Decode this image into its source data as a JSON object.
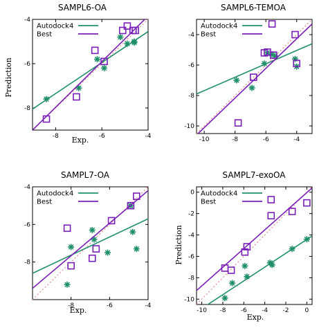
{
  "colors": {
    "autodock": "#1f8f6a",
    "best": "#7a1fb8",
    "diagonal": "#e88a8a",
    "axis": "#000000"
  },
  "chart_data": [
    {
      "type": "scatter",
      "title": "SAMPL6-OA",
      "xlabel": "Exp.",
      "ylabel": "Prediction",
      "xlim": [
        -9,
        -4
      ],
      "ylim": [
        -9,
        -4
      ],
      "xticks": [
        -8,
        -6,
        -4
      ],
      "yticks": [
        -8,
        -6,
        -4
      ],
      "legend": {
        "placement": "top-left",
        "entries": [
          "Autodock4",
          "Best"
        ]
      },
      "series": [
        {
          "name": "Autodock4",
          "marker": "asterisk",
          "points": [
            [
              -8.4,
              -7.6
            ],
            [
              -7.0,
              -7.1
            ],
            [
              -6.2,
              -5.8
            ],
            [
              -5.9,
              -6.2
            ],
            [
              -5.2,
              -4.8
            ],
            [
              -4.9,
              -5.1
            ],
            [
              -4.6,
              -5.05
            ],
            [
              -4.6,
              -5.0
            ]
          ],
          "fit": [
            [
              -9,
              -8.05
            ],
            [
              -4,
              -4.55
            ]
          ]
        },
        {
          "name": "Best",
          "marker": "square",
          "points": [
            [
              -8.4,
              -8.5
            ],
            [
              -7.1,
              -7.5
            ],
            [
              -6.3,
              -5.4
            ],
            [
              -5.9,
              -5.9
            ],
            [
              -5.1,
              -4.5
            ],
            [
              -4.9,
              -4.3
            ],
            [
              -4.65,
              -4.5
            ],
            [
              -4.55,
              -4.5
            ]
          ],
          "fit": [
            [
              -9,
              -9.0
            ],
            [
              -4,
              -3.85
            ]
          ]
        }
      ]
    },
    {
      "type": "scatter",
      "title": "SAMPL6-TEMOA",
      "xlabel": "",
      "ylabel": "",
      "xlim": [
        -10.5,
        -3
      ],
      "ylim": [
        -10.5,
        -3
      ],
      "xticks": [
        -10,
        -8,
        -6,
        -4
      ],
      "yticks": [
        -10,
        -8,
        -6,
        -4
      ],
      "legend": {
        "placement": "top-left",
        "entries": [
          "Autodock4",
          "Best"
        ]
      },
      "series": [
        {
          "name": "Autodock4",
          "marker": "asterisk",
          "points": [
            [
              -7.9,
              -7.0
            ],
            [
              -6.9,
              -7.5
            ],
            [
              -6.1,
              -5.9
            ],
            [
              -5.9,
              -5.2
            ],
            [
              -5.6,
              -5.3
            ],
            [
              -5.4,
              -5.4
            ],
            [
              -4.1,
              -5.6
            ],
            [
              -4.0,
              -6.1
            ]
          ],
          "fit": [
            [
              -10.5,
              -7.9
            ],
            [
              -3,
              -4.6
            ]
          ]
        },
        {
          "name": "Best",
          "marker": "square",
          "points": [
            [
              -7.8,
              -9.8
            ],
            [
              -6.8,
              -6.8
            ],
            [
              -6.1,
              -5.2
            ],
            [
              -5.9,
              -5.15
            ],
            [
              -5.5,
              -5.35
            ],
            [
              -5.6,
              -3.3
            ],
            [
              -4.1,
              -4.0
            ],
            [
              -4.0,
              -5.9
            ]
          ],
          "fit": [
            [
              -10.5,
              -10.6
            ],
            [
              -3,
              -3.3
            ]
          ]
        }
      ]
    },
    {
      "type": "scatter",
      "title": "SAMPL7-OA",
      "xlabel": "Exp.",
      "ylabel": "",
      "xlim": [
        -10,
        -4
      ],
      "ylim": [
        -10,
        -4
      ],
      "xticks": [
        -8,
        -6,
        -4
      ],
      "yticks": [
        -8,
        -6,
        -4
      ],
      "legend": {
        "placement": "top-left",
        "entries": [
          "Autodock4",
          "Best"
        ]
      },
      "series": [
        {
          "name": "Autodock4",
          "marker": "asterisk",
          "points": [
            [
              -8.2,
              -9.2
            ],
            [
              -8.0,
              -7.2
            ],
            [
              -6.9,
              -6.3
            ],
            [
              -6.8,
              -6.8
            ],
            [
              -6.1,
              -7.5
            ],
            [
              -4.9,
              -5.0
            ],
            [
              -4.8,
              -6.4
            ],
            [
              -4.6,
              -7.3
            ]
          ],
          "fit": [
            [
              -10,
              -8.6
            ],
            [
              -4,
              -5.7
            ]
          ]
        },
        {
          "name": "Best",
          "marker": "square",
          "points": [
            [
              -8.2,
              -6.2
            ],
            [
              -8.0,
              -8.2
            ],
            [
              -6.9,
              -7.8
            ],
            [
              -6.7,
              -7.3
            ],
            [
              -5.9,
              -5.8
            ],
            [
              -4.9,
              -5.0
            ],
            [
              -4.6,
              -4.5
            ]
          ],
          "fit": [
            [
              -10,
              -9.4
            ],
            [
              -4,
              -4.2
            ]
          ]
        }
      ]
    },
    {
      "type": "scatter",
      "title": "SAMPL7-exoOA",
      "xlabel": "Exp.",
      "ylabel": "Prediction",
      "xlim": [
        -10.5,
        0.5
      ],
      "ylim": [
        -10.5,
        0.5
      ],
      "xticks": [
        -10,
        -8,
        -6,
        -4,
        -2,
        0
      ],
      "yticks": [
        -10,
        -8,
        -6,
        -4,
        -2,
        0
      ],
      "legend": {
        "placement": "top-left",
        "entries": [
          "Autodock4",
          "Best"
        ]
      },
      "series": [
        {
          "name": "Autodock4",
          "marker": "asterisk",
          "points": [
            [
              -7.8,
              -9.9
            ],
            [
              -7.1,
              -8.5
            ],
            [
              -5.9,
              -6.9
            ],
            [
              -5.7,
              -7.9
            ],
            [
              -3.5,
              -6.6
            ],
            [
              -3.3,
              -6.8
            ],
            [
              -1.4,
              -5.3
            ],
            [
              0.0,
              -4.4
            ]
          ],
          "fit": [
            [
              -10.5,
              -11.2
            ],
            [
              0.5,
              -4.1
            ]
          ]
        },
        {
          "name": "Best",
          "marker": "square",
          "points": [
            [
              -7.8,
              -7.1
            ],
            [
              -7.2,
              -7.3
            ],
            [
              -5.9,
              -5.6
            ],
            [
              -5.7,
              -5.1
            ],
            [
              -3.4,
              -2.2
            ],
            [
              -3.4,
              -0.7
            ],
            [
              -1.4,
              -1.8
            ],
            [
              0.0,
              -1.0
            ]
          ],
          "fit": [
            [
              -10.5,
              -9.2
            ],
            [
              0.5,
              0.4
            ]
          ]
        }
      ]
    }
  ]
}
